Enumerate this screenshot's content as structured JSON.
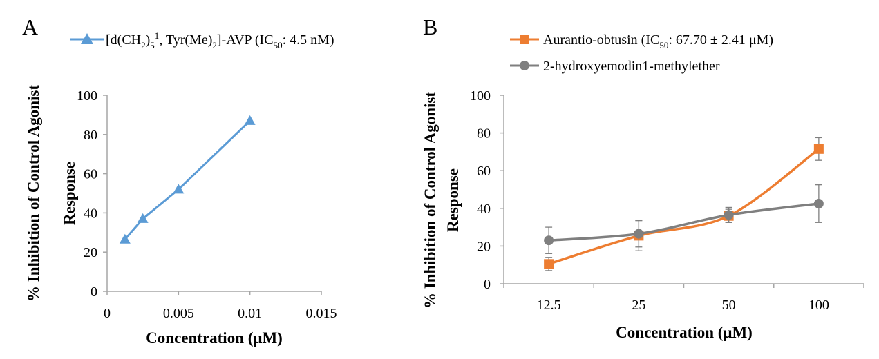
{
  "chart_data": [
    {
      "type": "line",
      "panel": "A",
      "xlabel": "Concentration (μM)",
      "ylabel_line1": "% Inhibition of Control Agonist",
      "ylabel_line2": "Response",
      "xlim": [
        0,
        0.015
      ],
      "ylim": [
        0,
        100
      ],
      "x_ticks": [
        0,
        0.005,
        0.01,
        0.015
      ],
      "x_tick_labels": [
        "0",
        "0.005",
        "0.01",
        "0.015"
      ],
      "y_ticks": [
        0,
        20,
        40,
        60,
        80,
        100
      ],
      "y_tick_labels": [
        "0",
        "20",
        "40",
        "60",
        "80",
        "100"
      ],
      "legend_position": "top",
      "series": [
        {
          "name": "[d(CH2)5 1, Tyr(Me)2]-AVP (IC50: 4.5 nM)",
          "color": "#5b9bd5",
          "marker": "triangle",
          "x": [
            0.00125,
            0.0025,
            0.005,
            0.01
          ],
          "y": [
            26.5,
            37,
            52,
            87
          ]
        }
      ]
    },
    {
      "type": "line",
      "panel": "B",
      "xlabel": "Concentration (μM)",
      "ylabel_line1": "% Inhibition of Control Agonist",
      "ylabel_line2": "Response",
      "categories": [
        "12.5",
        "25",
        "50",
        "100"
      ],
      "ylim": [
        0,
        100
      ],
      "y_ticks": [
        0,
        20,
        40,
        60,
        80,
        100
      ],
      "y_tick_labels": [
        "0",
        "20",
        "40",
        "60",
        "80",
        "100"
      ],
      "legend_position": "top",
      "series": [
        {
          "name": "Aurantio-obtusin (IC50: 67.70 ± 2.41 μM)",
          "color": "#ed7d31",
          "marker": "square",
          "values": [
            10.5,
            25.5,
            36,
            71.5
          ],
          "errors": [
            3.5,
            8,
            3.5,
            6
          ]
        },
        {
          "name": "2-hydroxyemodin1-methylether",
          "color": "#7f7f7f",
          "marker": "circle",
          "values": [
            23,
            26.5,
            36.5,
            42.5
          ],
          "errors": [
            7,
            7,
            4,
            10
          ]
        }
      ]
    }
  ],
  "legend_A": {
    "p1": "[d(CH",
    "s1": "2",
    "p2": ")",
    "s2": "5",
    "sup": "1",
    "p3": ", Tyr(Me)",
    "s3": "2",
    "p4": "]-AVP (IC",
    "s4": "50",
    "p5": ": 4.5 nM)"
  },
  "legend_B1": {
    "p1": "Aurantio-obtusin (IC",
    "s1": "50",
    "p2": ": 67.70 ± 2.41 μM)"
  },
  "legend_B2": {
    "text": "2-hydroxyemodin1-methylether"
  }
}
